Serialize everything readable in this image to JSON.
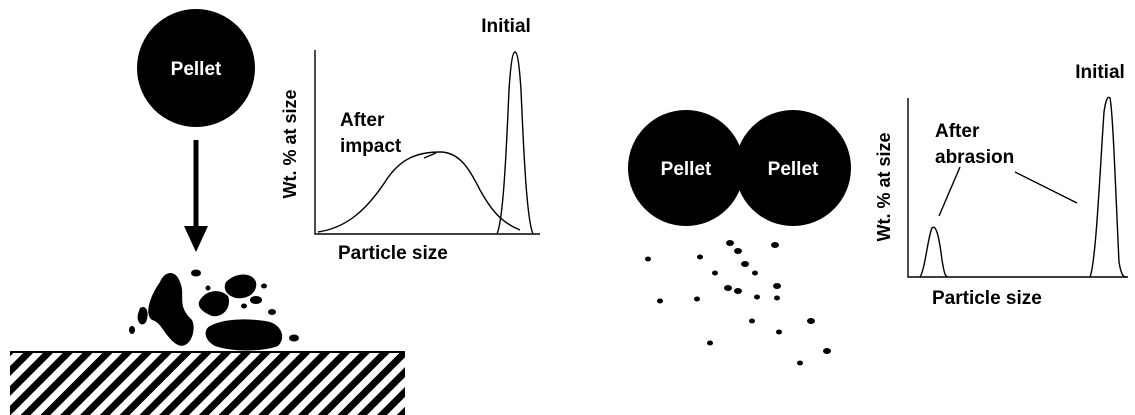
{
  "colors": {
    "ink": "#000000",
    "paper": "#ffffff"
  },
  "impact": {
    "pellet_label": "Pellet",
    "graph": {
      "ylabel": "Wt. % at size",
      "xlabel": "Particle size",
      "label_initial": "Initial",
      "label_after_line1": "After",
      "label_after_line2": "impact"
    }
  },
  "abrasion": {
    "pellet_left_label": "Pellet",
    "pellet_right_label": "Pellet",
    "graph": {
      "ylabel": "Wt. % at size",
      "xlabel": "Particle size",
      "label_initial": "Initial",
      "label_after_line1": "After",
      "label_after_line2": "abrasion"
    }
  }
}
